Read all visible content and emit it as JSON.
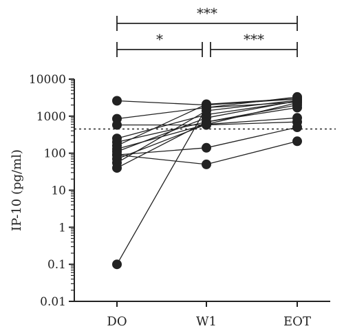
{
  "chart_data": {
    "type": "scatter",
    "title": "",
    "xlabel": "",
    "ylabel": "IP-10 (pg/ml)",
    "yscale": "log",
    "ylim": [
      0.01,
      10000
    ],
    "yticks": [
      0.01,
      0.1,
      1,
      10,
      100,
      1000,
      10000
    ],
    "ytick_labels": [
      "0.01",
      "0.1",
      "1",
      "10",
      "100",
      "1000",
      "10000"
    ],
    "categories": [
      "DO",
      "W1",
      "EOT"
    ],
    "threshold": 450,
    "subjects": [
      [
        2600,
        2000,
        2900
      ],
      [
        850,
        1700,
        3300
      ],
      [
        580,
        580,
        700
      ],
      [
        250,
        1100,
        2500
      ],
      [
        200,
        700,
        2000
      ],
      [
        160,
        2100,
        3000
      ],
      [
        130,
        600,
        2300
      ],
      [
        110,
        900,
        2600
      ],
      [
        90,
        140,
        500
      ],
      [
        70,
        600,
        900
      ],
      [
        55,
        1400,
        2700
      ],
      [
        40,
        700,
        1700
      ],
      [
        90,
        50,
        210
      ],
      [
        0.1,
        1700,
        2400
      ]
    ],
    "comparisons": [
      {
        "from": 0,
        "to": 2,
        "label": "***"
      },
      {
        "from": 0,
        "to": 1,
        "label": "*"
      },
      {
        "from": 1,
        "to": 2,
        "label": "***"
      }
    ],
    "grid": false,
    "legend": "none"
  }
}
